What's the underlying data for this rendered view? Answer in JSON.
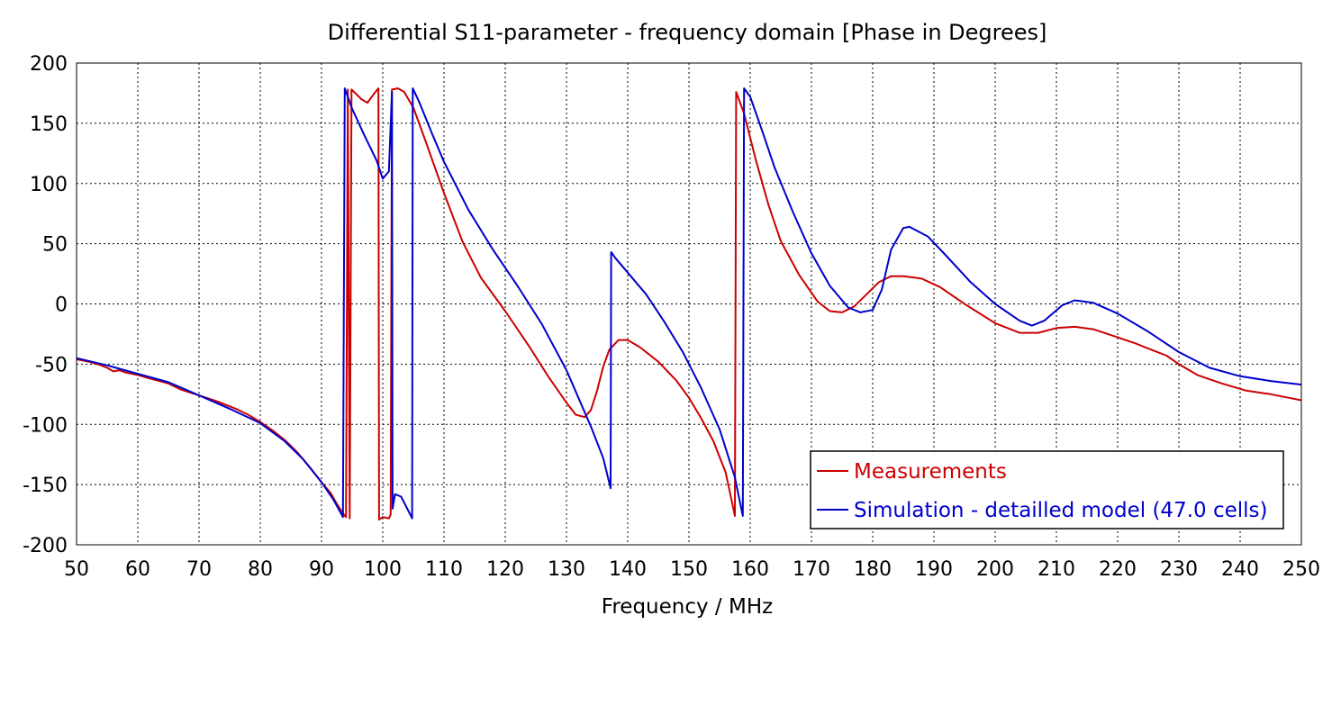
{
  "chart_data": {
    "type": "line",
    "title": "Differential S11-parameter - frequency domain [Phase in Degrees]",
    "xlabel": "Frequency / MHz",
    "ylabel": "",
    "xlim": [
      50,
      250
    ],
    "ylim": [
      -200,
      200
    ],
    "xticks": [
      50,
      60,
      70,
      80,
      90,
      100,
      110,
      120,
      130,
      140,
      150,
      160,
      170,
      180,
      190,
      200,
      210,
      220,
      230,
      240,
      250
    ],
    "yticks": [
      200,
      150,
      100,
      50,
      0,
      -50,
      -100,
      -150,
      -200
    ],
    "grid": true,
    "legend_position": "bottom-right",
    "series": [
      {
        "name": "Measurements",
        "color": "#cc0000",
        "points": [
          [
            50,
            -46
          ],
          [
            52,
            -48
          ],
          [
            54,
            -51
          ],
          [
            55,
            -53
          ],
          [
            56,
            -56
          ],
          [
            57,
            -55
          ],
          [
            58,
            -57
          ],
          [
            60,
            -59
          ],
          [
            62,
            -62
          ],
          [
            65,
            -66
          ],
          [
            67,
            -71
          ],
          [
            70,
            -76
          ],
          [
            73,
            -81
          ],
          [
            76,
            -87
          ],
          [
            78,
            -92
          ],
          [
            80,
            -98
          ],
          [
            82,
            -105
          ],
          [
            84,
            -113
          ],
          [
            86,
            -123
          ],
          [
            88,
            -135
          ],
          [
            90,
            -148
          ],
          [
            91.5,
            -157
          ],
          [
            92.5,
            -166
          ],
          [
            93.5,
            -174
          ],
          [
            94,
            -177
          ],
          [
            94.3,
            178
          ],
          [
            94.6,
            -178
          ],
          [
            94.9,
            178
          ],
          [
            95.5,
            175
          ],
          [
            96.5,
            170
          ],
          [
            97.5,
            167
          ],
          [
            98.5,
            174
          ],
          [
            99.3,
            179
          ],
          [
            99.4,
            -179
          ],
          [
            100,
            -177
          ],
          [
            101,
            -178
          ],
          [
            101.3,
            -175
          ],
          [
            101.5,
            178
          ],
          [
            102.5,
            179
          ],
          [
            103.5,
            176
          ],
          [
            105,
            163
          ],
          [
            107,
            135
          ],
          [
            110,
            92
          ],
          [
            113,
            52
          ],
          [
            116,
            22
          ],
          [
            120,
            -6
          ],
          [
            124,
            -36
          ],
          [
            127,
            -60
          ],
          [
            130,
            -82
          ],
          [
            131.5,
            -92
          ],
          [
            133,
            -94
          ],
          [
            134,
            -88
          ],
          [
            135,
            -72
          ],
          [
            136,
            -52
          ],
          [
            137,
            -38
          ],
          [
            138.5,
            -30
          ],
          [
            140,
            -30
          ],
          [
            142,
            -36
          ],
          [
            145,
            -48
          ],
          [
            148,
            -64
          ],
          [
            150,
            -78
          ],
          [
            152,
            -95
          ],
          [
            154,
            -114
          ],
          [
            156,
            -140
          ],
          [
            157.5,
            -176
          ],
          [
            157.7,
            176
          ],
          [
            159,
            158
          ],
          [
            161,
            118
          ],
          [
            163,
            82
          ],
          [
            165,
            52
          ],
          [
            168,
            24
          ],
          [
            171,
            2
          ],
          [
            173,
            -6
          ],
          [
            175,
            -7
          ],
          [
            177,
            -2
          ],
          [
            179,
            8
          ],
          [
            181,
            18
          ],
          [
            183,
            23
          ],
          [
            185,
            23
          ],
          [
            188,
            21
          ],
          [
            191,
            14
          ],
          [
            195,
            0
          ],
          [
            200,
            -16
          ],
          [
            204,
            -24
          ],
          [
            207,
            -24
          ],
          [
            210,
            -20
          ],
          [
            213,
            -19
          ],
          [
            216,
            -21
          ],
          [
            219,
            -26
          ],
          [
            223,
            -33
          ],
          [
            226,
            -39
          ],
          [
            228,
            -43
          ],
          [
            230,
            -50
          ],
          [
            233,
            -59
          ],
          [
            237,
            -66
          ],
          [
            241,
            -72
          ],
          [
            245,
            -75
          ],
          [
            248,
            -78
          ],
          [
            250,
            -80
          ]
        ]
      },
      {
        "name": "Simulation - detailled model (47.0 cells)",
        "color": "#0000cc",
        "points": [
          [
            50,
            -45
          ],
          [
            55,
            -51
          ],
          [
            60,
            -58
          ],
          [
            65,
            -65
          ],
          [
            70,
            -76
          ],
          [
            75,
            -87
          ],
          [
            80,
            -99
          ],
          [
            84,
            -114
          ],
          [
            87,
            -129
          ],
          [
            90,
            -148
          ],
          [
            92,
            -163
          ],
          [
            93.5,
            -177
          ],
          [
            93.8,
            179
          ],
          [
            95,
            162
          ],
          [
            97,
            140
          ],
          [
            99,
            119
          ],
          [
            100,
            104
          ],
          [
            101,
            110
          ],
          [
            101.5,
            176
          ],
          [
            101.6,
            -170
          ],
          [
            102,
            -158
          ],
          [
            103,
            -160
          ],
          [
            104.5,
            -175
          ],
          [
            104.8,
            -178
          ],
          [
            104.9,
            179
          ],
          [
            106,
            167
          ],
          [
            108,
            142
          ],
          [
            110,
            118
          ],
          [
            114,
            78
          ],
          [
            118,
            45
          ],
          [
            122,
            15
          ],
          [
            126,
            -17
          ],
          [
            130,
            -55
          ],
          [
            134,
            -102
          ],
          [
            136,
            -128
          ],
          [
            137.2,
            -153
          ],
          [
            137.3,
            43
          ],
          [
            138,
            38
          ],
          [
            140,
            26
          ],
          [
            143,
            8
          ],
          [
            146,
            -15
          ],
          [
            149,
            -40
          ],
          [
            152,
            -70
          ],
          [
            155,
            -104
          ],
          [
            157.5,
            -144
          ],
          [
            158.8,
            -176
          ],
          [
            159,
            179
          ],
          [
            160,
            172
          ],
          [
            162,
            143
          ],
          [
            164,
            113
          ],
          [
            167,
            76
          ],
          [
            170,
            42
          ],
          [
            173,
            15
          ],
          [
            176,
            -3
          ],
          [
            178,
            -7
          ],
          [
            180,
            -5
          ],
          [
            181.5,
            12
          ],
          [
            183,
            45
          ],
          [
            185,
            63
          ],
          [
            186,
            64
          ],
          [
            189,
            56
          ],
          [
            192,
            40
          ],
          [
            196,
            18
          ],
          [
            200,
            0
          ],
          [
            204,
            -14
          ],
          [
            206,
            -18
          ],
          [
            208,
            -14
          ],
          [
            211,
            -1
          ],
          [
            213,
            3
          ],
          [
            216,
            1
          ],
          [
            220,
            -8
          ],
          [
            225,
            -23
          ],
          [
            230,
            -40
          ],
          [
            235,
            -53
          ],
          [
            240,
            -60
          ],
          [
            245,
            -64
          ],
          [
            250,
            -67
          ]
        ]
      }
    ]
  }
}
